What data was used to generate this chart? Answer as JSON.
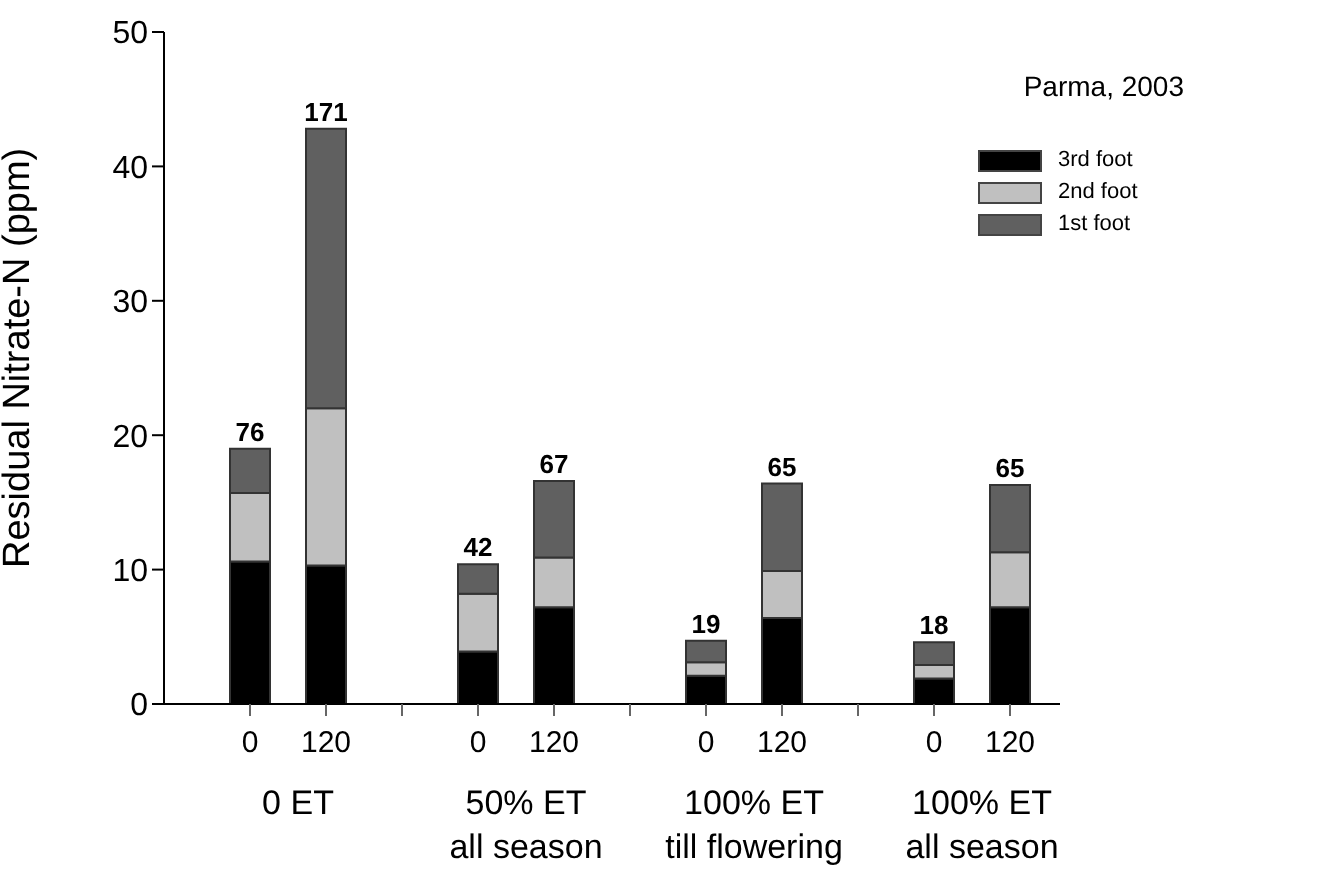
{
  "chart_data": {
    "type": "bar",
    "stacked": true,
    "title": "Parma, 2003",
    "ylabel": "Residual Nitrate-N (ppm)",
    "categories": [
      "0",
      "120",
      null,
      "0",
      "120",
      null,
      "0",
      "120",
      null,
      "0",
      "120"
    ],
    "series": [
      {
        "name": "3rd foot",
        "color": "#000000",
        "values": [
          10.6,
          10.3,
          null,
          3.9,
          7.2,
          null,
          2.1,
          6.4,
          null,
          1.9,
          7.2
        ]
      },
      {
        "name": "2nd foot",
        "color": "#c0c0c0",
        "values": [
          5.1,
          11.7,
          null,
          4.3,
          3.7,
          null,
          1.0,
          3.5,
          null,
          1.0,
          4.1
        ]
      },
      {
        "name": "1st foot",
        "color": "#606060",
        "values": [
          3.3,
          20.8,
          null,
          2.2,
          5.7,
          null,
          1.6,
          6.5,
          null,
          1.7,
          5.0
        ]
      }
    ],
    "annotations": [
      "0 ET",
      "50% ET\nall season",
      "100% ET\ntill flowering",
      "100% ET\nall season",
      "76",
      "171",
      "42",
      "67",
      "19",
      "65",
      "18",
      "65"
    ],
    "ylim": [
      0,
      50
    ],
    "yticks": [
      0,
      10,
      20,
      30,
      40,
      50
    ],
    "legend": "top right"
  }
}
